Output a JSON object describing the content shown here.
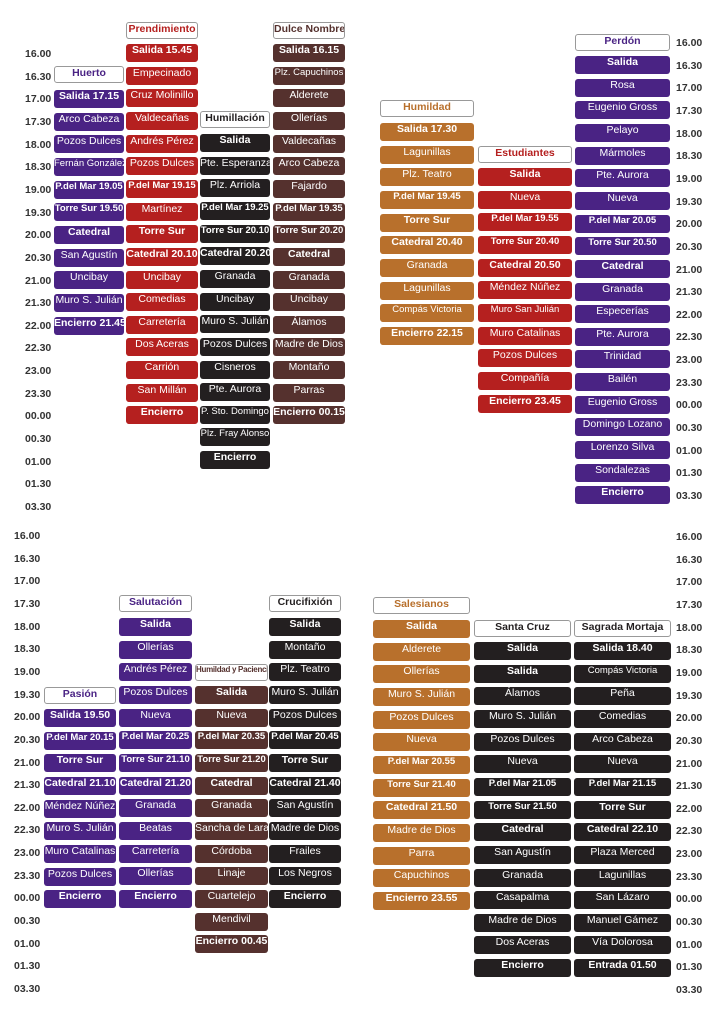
{
  "colors": {
    "purple": "#4a2384",
    "red": "#b5201f",
    "brown": "#55312e",
    "dark": "#231f20",
    "orange": "#b8702c"
  },
  "times": {
    "top_left": [
      "16.00",
      "16.30",
      "17.00",
      "17.30",
      "18.00",
      "18.30",
      "19.00",
      "19.30",
      "20.00",
      "20.30",
      "21.00",
      "21.30",
      "22.00",
      "22.30",
      "23.00",
      "23.30",
      "00.00",
      "00.30",
      "01.00",
      "01.30",
      "03.30"
    ],
    "top_right": [
      "16.00",
      "16.30",
      "17.00",
      "17.30",
      "18.00",
      "18.30",
      "19.00",
      "19.30",
      "20.00",
      "20.30",
      "21.00",
      "21.30",
      "22.00",
      "22.30",
      "23.00",
      "23.30",
      "00.00",
      "00.30",
      "01.00",
      "01.30",
      "03.30"
    ],
    "bottom_left": [
      "16.00",
      "16.30",
      "17.00",
      "17.30",
      "18.00",
      "18.30",
      "19.00",
      "19.30",
      "20.00",
      "20.30",
      "21.00",
      "21.30",
      "22.00",
      "22.30",
      "23.00",
      "23.30",
      "00.00",
      "00.30",
      "01.00",
      "01.30",
      "03.30"
    ],
    "bottom_right": [
      "16.00",
      "16.30",
      "17.00",
      "17.30",
      "18.00",
      "18.30",
      "19.00",
      "19.30",
      "20.00",
      "20.30",
      "21.00",
      "21.30",
      "22.00",
      "22.30",
      "23.00",
      "23.30",
      "00.00",
      "00.30",
      "01.00",
      "01.30",
      "03.30"
    ]
  },
  "brotherhoods": [
    {
      "id": "huerto",
      "name": "Huerto",
      "color": "purple",
      "cells": [
        "Salida 17.15",
        "Arco Cabeza",
        "Pozos Dulces",
        "Fernán González",
        "P.del Mar 19.05",
        "Torre Sur 19.50",
        "Catedral",
        "San Agustín",
        "Uncibay",
        "Muro S. Julián",
        "Encierro 21.45"
      ]
    },
    {
      "id": "prendimiento",
      "name": "Prendimiento",
      "color": "red",
      "cells": [
        "Salida 15.45",
        "Empecinado",
        "Cruz Molinillo",
        "Valdecañas",
        "Andrés Pérez",
        "Pozos Dulces",
        "P.del Mar 19.15",
        "Martínez",
        "Torre Sur",
        "Catedral 20.10",
        "Uncibay",
        "Comedias",
        "Carretería",
        "Dos Aceras",
        "Carrión",
        "San Millán",
        "Encierro"
      ]
    },
    {
      "id": "humillacion",
      "name": "Humillación",
      "color": "dark",
      "cells": [
        "Salida",
        "Pte. Esperanza",
        "Plz. Arriola",
        "P.del Mar 19.25",
        "Torre Sur 20.10",
        "Catedral 20.20",
        "Granada",
        "Uncibay",
        "Muro S. Julián",
        "Pozos Dulces",
        "Cisneros",
        "Pte. Aurora",
        "P. Sto. Domingo",
        "Plz. Fray Alonso",
        "Encierro"
      ]
    },
    {
      "id": "dulce-nombre",
      "name": "Dulce Nombre",
      "color": "brown",
      "cells": [
        "Salida 16.15",
        "Plz. Capuchinos",
        "Alderete",
        "Ollerías",
        "Valdecañas",
        "Arco Cabeza",
        "Fajardo",
        "P.del Mar 19.35",
        "Torre Sur 20.20",
        "Catedral",
        "Granada",
        "Uncibay",
        "Álamos",
        "Madre de Dios",
        "Montaño",
        "Parras",
        "Encierro 00.15"
      ]
    },
    {
      "id": "humildad",
      "name": "Humildad",
      "color": "orange",
      "cells": [
        "Salida 17.30",
        "Lagunillas",
        "Plz. Teatro",
        "P.del Mar 19.45",
        "Torre Sur",
        "Catedral 20.40",
        "Granada",
        "Lagunillas",
        "Compás Victoria",
        "Encierro 22.15"
      ]
    },
    {
      "id": "estudiantes",
      "name": "Estudiantes",
      "color": "red",
      "cells": [
        "Salida",
        "Nueva",
        "P.del Mar 19.55",
        "Torre Sur 20.40",
        "Catedral 20.50",
        "Méndez Núñez",
        "Muro San Julián",
        "Muro Catalinas",
        "Pozos Dulces",
        "Compañía",
        "Encierro 23.45"
      ]
    },
    {
      "id": "perdon",
      "name": "Perdón",
      "color": "purple",
      "cells": [
        "Salida",
        "Rosa",
        "Eugenio Gross",
        "Pelayo",
        "Mármoles",
        "Pte. Aurora",
        "Nueva",
        "P.del Mar 20.05",
        "Torre Sur 20.50",
        "Catedral",
        "Granada",
        "Especerías",
        "Pte. Aurora",
        "Trinidad",
        "Bailén",
        "Eugenio Gross",
        "Domingo Lozano",
        "Lorenzo Silva",
        "Sondalezas",
        "Encierro"
      ]
    },
    {
      "id": "pasion",
      "name": "Pasión",
      "color": "purple",
      "cells": [
        "Salida 19.50",
        "P.del Mar 20.15",
        "Torre Sur",
        "Catedral 21.10",
        "Méndez Núñez",
        "Muro S. Julián",
        "Muro Catalinas",
        "Pozos Dulces",
        "Encierro"
      ]
    },
    {
      "id": "salutacion",
      "name": "Salutación",
      "color": "purple",
      "cells": [
        "Salida",
        "Ollerías",
        "Andrés Pérez",
        "Pozos Dulces",
        "Nueva",
        "P.del Mar 20.25",
        "Torre Sur 21.10",
        "Catedral 21.20",
        "Granada",
        "Beatas",
        "Carretería",
        "Ollerías",
        "Encierro"
      ]
    },
    {
      "id": "humildad-paciencia",
      "name": "Humildad y Paciencia",
      "color": "brown",
      "cells": [
        "Salida",
        "Nueva",
        "P.del Mar 20.35",
        "Torre Sur 21.20",
        "Catedral",
        "Granada",
        "Sancha de Lara",
        "Córdoba",
        "Linaje",
        "Cuartelejo",
        "Mendivil",
        "Encierro 00.45"
      ]
    },
    {
      "id": "crucifixion",
      "name": "Crucifixión",
      "color": "dark",
      "cells": [
        "Salida",
        "Montaño",
        "Plz. Teatro",
        "Muro S. Julián",
        "Pozos Dulces",
        "P.del Mar 20.45",
        "Torre Sur",
        "Catedral 21.40",
        "San Agustín",
        "Madre de Dios",
        "Frailes",
        "Los Negros",
        "Encierro"
      ]
    },
    {
      "id": "salesianos",
      "name": "Salesianos",
      "color": "orange",
      "cells": [
        "Salida",
        "Alderete",
        "Ollerías",
        "Muro S. Julián",
        "Pozos Dulces",
        "Nueva",
        "P.del Mar 20.55",
        "Torre Sur 21.40",
        "Catedral 21.50",
        "Madre de Dios",
        "Parra",
        "Capuchinos",
        "Encierro 23.55"
      ]
    },
    {
      "id": "santa-cruz",
      "name": "Santa Cruz",
      "color": "dark",
      "cells": [
        "Salida",
        "Salida",
        "Álamos",
        "Muro S. Julián",
        "Pozos Dulces",
        "Nueva",
        "P.del Mar 21.05",
        "Torre Sur 21.50",
        "Catedral",
        "San Agustín",
        "Granada",
        "Casapalma",
        "Madre de Dios",
        "Dos Aceras",
        "Encierro"
      ]
    },
    {
      "id": "sagrada-mortaja",
      "name": "Sagrada Mortaja",
      "color": "dark",
      "cells": [
        "Salida 18.40",
        "Compás Victoria",
        "Peña",
        "Comedias",
        "Arco Cabeza",
        "Nueva",
        "P.del Mar 21.15",
        "Torre Sur",
        "Catedral 22.10",
        "Plaza Merced",
        "Lagunillas",
        "San Lázaro",
        "Manuel Gámez",
        "Vía Dolorosa",
        "Entrada 01.50"
      ]
    }
  ]
}
